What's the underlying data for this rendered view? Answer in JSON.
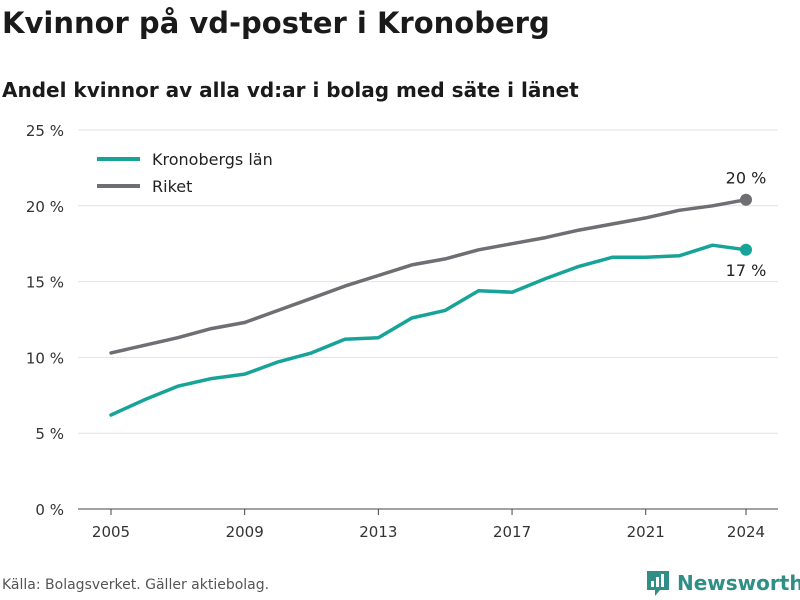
{
  "title": "Kvinnor på vd-poster i Kronoberg",
  "subtitle": "Andel kvinnor av alla vd:ar i bolag med säte i länet",
  "source": "Källa: Bolagsverket. Gäller aktiebolag.",
  "brand": "Newsworthy",
  "colors": {
    "kronoberg": "#17a398",
    "riket": "#6e6e73",
    "grid": "#e2e2e2",
    "brand": "#2f8f87"
  },
  "chart_data": {
    "type": "line",
    "x": [
      2005,
      2006,
      2007,
      2008,
      2009,
      2010,
      2011,
      2012,
      2013,
      2014,
      2015,
      2016,
      2017,
      2018,
      2019,
      2020,
      2021,
      2022,
      2023,
      2024
    ],
    "xticks": [
      2005,
      2009,
      2013,
      2017,
      2021,
      2024
    ],
    "xtick_labels": [
      "2005",
      "2009",
      "2013",
      "2017",
      "2021",
      "2024"
    ],
    "ylim": [
      0,
      25
    ],
    "yticks": [
      0,
      5,
      10,
      15,
      20,
      25
    ],
    "ytick_labels": [
      "0 %",
      "5 %",
      "10 %",
      "15 %",
      "20 %",
      "25 %"
    ],
    "grid": true,
    "legend_position": "top-left",
    "series": [
      {
        "name": "Kronobergs län",
        "color": "#17a398",
        "values": [
          6.2,
          7.2,
          8.1,
          8.6,
          8.9,
          9.7,
          10.3,
          11.2,
          11.3,
          12.6,
          13.1,
          14.4,
          14.3,
          15.2,
          16.0,
          16.6,
          16.6,
          16.7,
          17.4,
          17.1
        ],
        "end_label": "17 %"
      },
      {
        "name": "Riket",
        "color": "#6e6e73",
        "values": [
          10.3,
          10.8,
          11.3,
          11.9,
          12.3,
          13.1,
          13.9,
          14.7,
          15.4,
          16.1,
          16.5,
          17.1,
          17.5,
          17.9,
          18.4,
          18.8,
          19.2,
          19.7,
          20.0,
          20.4
        ],
        "end_label": "20 %"
      }
    ]
  }
}
